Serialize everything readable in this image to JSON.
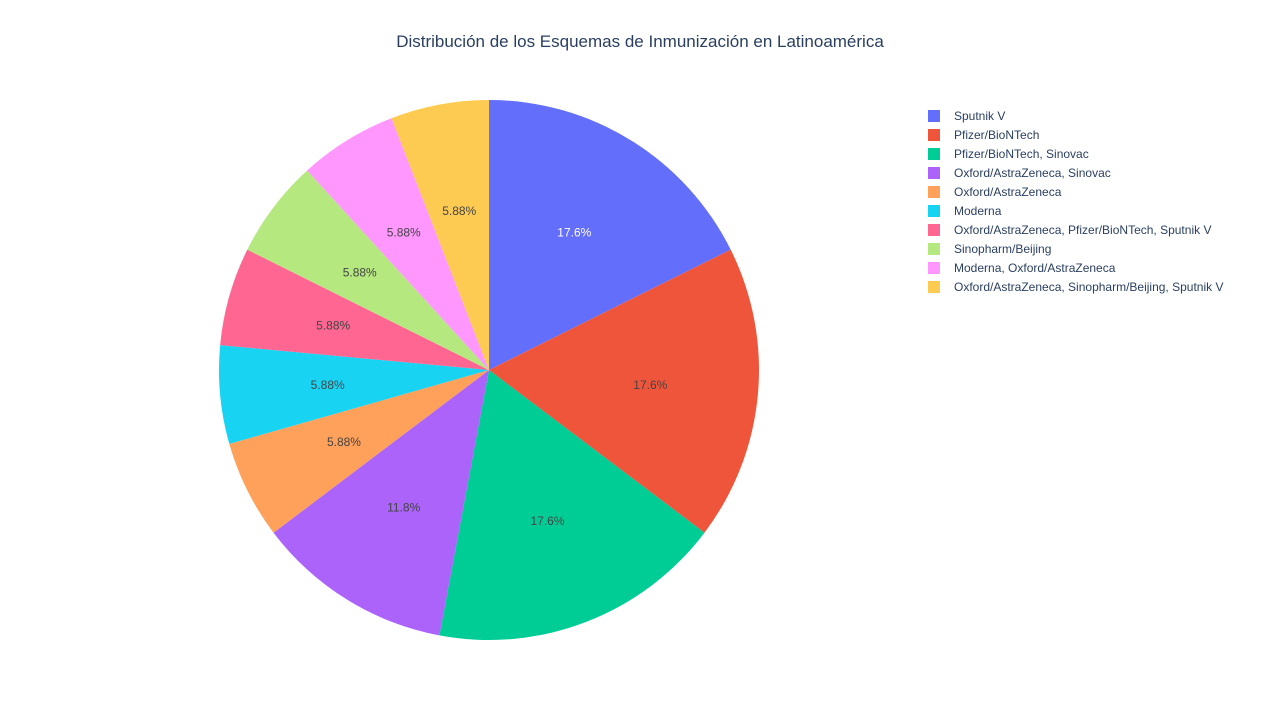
{
  "chart_data": {
    "type": "pie",
    "title": "Distribución de los Esquemas de Inmunización en Latinoamérica",
    "legend_position": "right",
    "direction": "clockwise",
    "slices": [
      {
        "label": "Sputnik V",
        "value": 3,
        "percent_label": "17.6%",
        "color": "#636efa",
        "text_color": "#ffffff"
      },
      {
        "label": "Pfizer/BioNTech",
        "value": 3,
        "percent_label": "17.6%",
        "color": "#EF553B",
        "text_color": "#444444"
      },
      {
        "label": "Pfizer/BioNTech, Sinovac",
        "value": 3,
        "percent_label": "17.6%",
        "color": "#00cc96",
        "text_color": "#444444"
      },
      {
        "label": "Oxford/AstraZeneca, Sinovac",
        "value": 2,
        "percent_label": "11.8%",
        "color": "#ab63fa",
        "text_color": "#444444"
      },
      {
        "label": "Oxford/AstraZeneca",
        "value": 1,
        "percent_label": "5.88%",
        "color": "#FFA15A",
        "text_color": "#444444"
      },
      {
        "label": "Moderna",
        "value": 1,
        "percent_label": "5.88%",
        "color": "#19d3f3",
        "text_color": "#444444"
      },
      {
        "label": "Oxford/AstraZeneca, Pfizer/BioNTech, Sputnik V",
        "value": 1,
        "percent_label": "5.88%",
        "color": "#FF6692",
        "text_color": "#444444"
      },
      {
        "label": "Sinopharm/Beijing",
        "value": 1,
        "percent_label": "5.88%",
        "color": "#B6E880",
        "text_color": "#444444"
      },
      {
        "label": "Moderna, Oxford/AstraZeneca",
        "value": 1,
        "percent_label": "5.88%",
        "color": "#FF97FF",
        "text_color": "#444444"
      },
      {
        "label": "Oxford/AstraZeneca, Sinopharm/Beijing, Sputnik V",
        "value": 1,
        "percent_label": "5.88%",
        "color": "#FECB52",
        "text_color": "#444444"
      }
    ]
  }
}
